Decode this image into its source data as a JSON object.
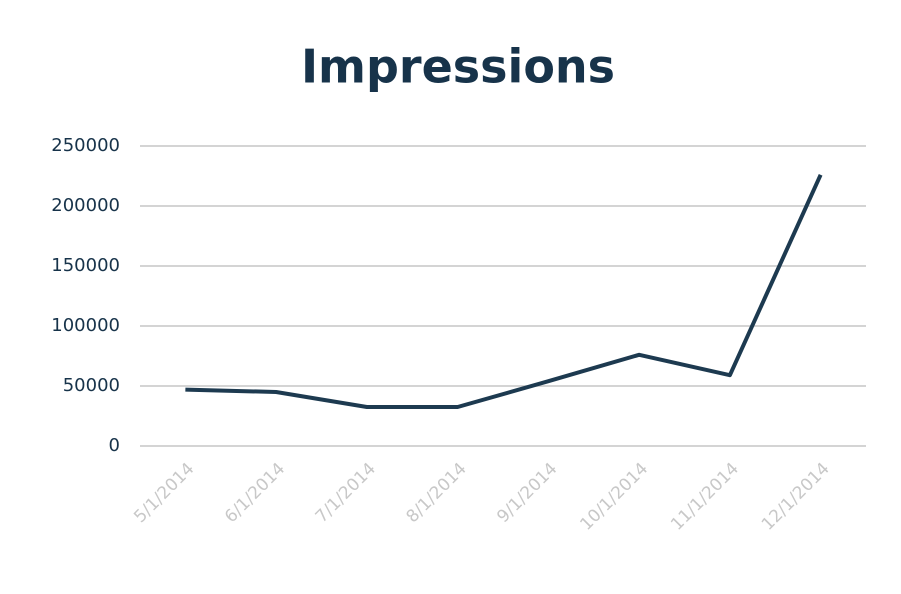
{
  "chart_data": {
    "type": "line",
    "title": "Impressions",
    "categories": [
      "5/1/2014",
      "6/1/2014",
      "7/1/2014",
      "8/1/2014",
      "9/1/2014",
      "10/1/2014",
      "11/1/2014",
      "12/1/2014"
    ],
    "values": [
      47000,
      45000,
      32500,
      32500,
      54000,
      76000,
      59000,
      226000
    ],
    "color": "#1d3a50",
    "ylim": [
      0,
      250000
    ],
    "yticks": [
      0,
      50000,
      100000,
      150000,
      200000,
      250000
    ],
    "grid": true
  }
}
